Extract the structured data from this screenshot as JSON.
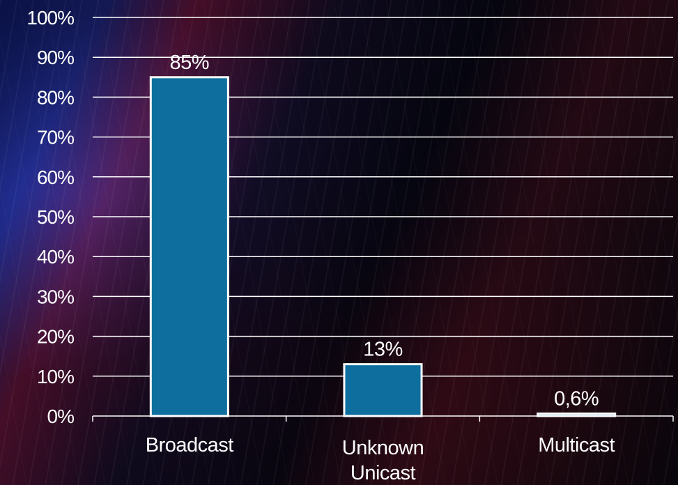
{
  "chart_data": {
    "type": "bar",
    "categories": [
      "Broadcast",
      "Unknown Unicast",
      "Multicast"
    ],
    "category_lines": [
      [
        "Broadcast"
      ],
      [
        "Unknown",
        "Unicast"
      ],
      [
        "Multicast"
      ]
    ],
    "values": [
      85,
      13,
      0.6
    ],
    "data_labels": [
      "85%",
      "13%",
      "0,6%"
    ],
    "ylim": [
      0,
      100
    ],
    "yticks": [
      0,
      10,
      20,
      30,
      40,
      50,
      60,
      70,
      80,
      90,
      100
    ],
    "ytick_labels": [
      "0%",
      "10%",
      "20%",
      "30%",
      "40%",
      "50%",
      "60%",
      "70%",
      "80%",
      "90%",
      "100%"
    ],
    "grid": true,
    "legend": "none",
    "title": "",
    "xlabel": "",
    "ylabel": "",
    "bar_color": "#0e6f9f",
    "bar_border_color": "#ffffff",
    "grid_color": "#ffffff",
    "text_color": "#ffffff"
  }
}
